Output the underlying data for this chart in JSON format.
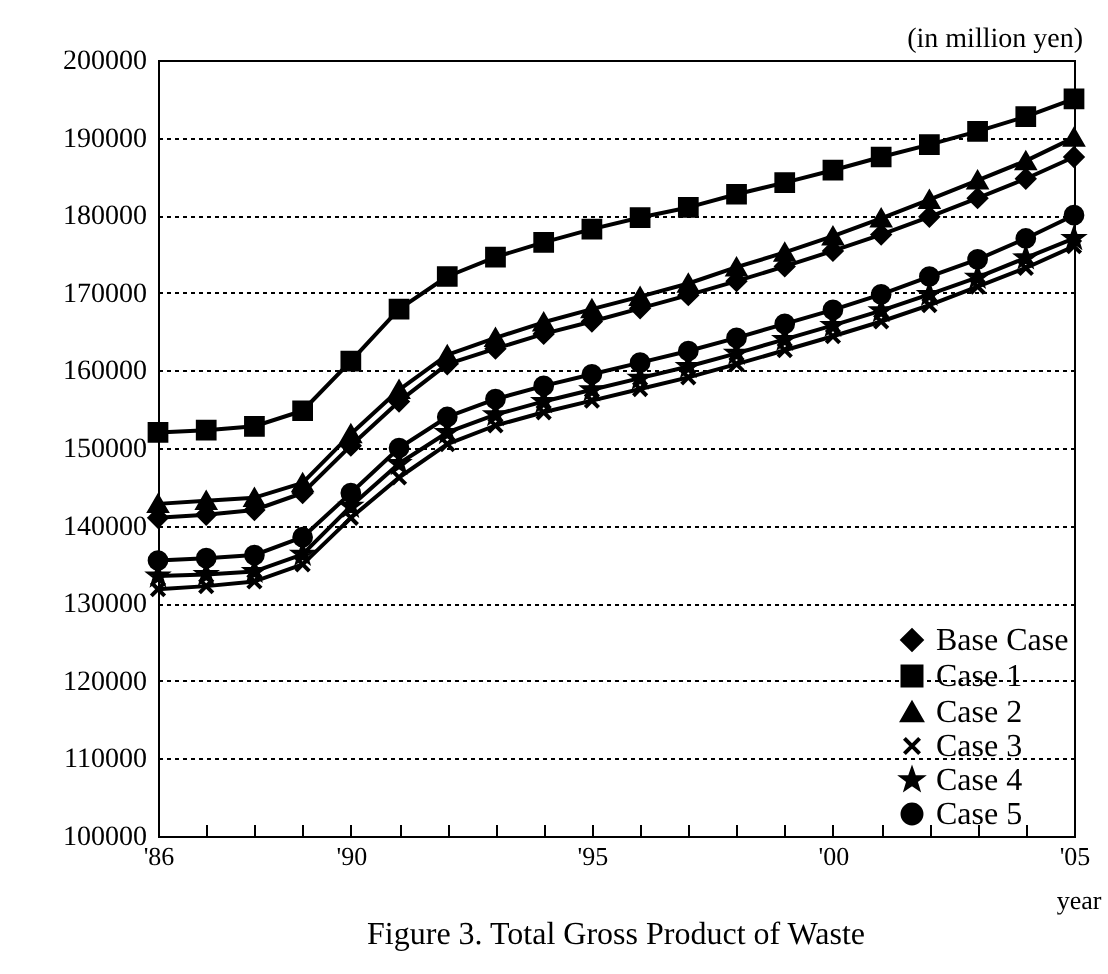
{
  "chart_data": {
    "type": "line",
    "title": "Figure 3. Total Gross Product of Waste",
    "xlabel": "year",
    "ylabel": "(in million yen)",
    "x": [
      1986,
      1987,
      1988,
      1989,
      1990,
      1991,
      1992,
      1993,
      1994,
      1995,
      1996,
      1997,
      1998,
      1999,
      2000,
      2001,
      2002,
      2003,
      2004,
      2005
    ],
    "xlim": [
      1986,
      2005
    ],
    "xticks": [
      {
        "value": 1986,
        "label": "'86"
      },
      {
        "value": 1987,
        "label": null
      },
      {
        "value": 1988,
        "label": null
      },
      {
        "value": 1989,
        "label": null
      },
      {
        "value": 1990,
        "label": "'90"
      },
      {
        "value": 1991,
        "label": null
      },
      {
        "value": 1992,
        "label": null
      },
      {
        "value": 1993,
        "label": null
      },
      {
        "value": 1994,
        "label": null
      },
      {
        "value": 1995,
        "label": "'95"
      },
      {
        "value": 1996,
        "label": null
      },
      {
        "value": 1997,
        "label": null
      },
      {
        "value": 1998,
        "label": null
      },
      {
        "value": 1999,
        "label": null
      },
      {
        "value": 2000,
        "label": "'00"
      },
      {
        "value": 2001,
        "label": null
      },
      {
        "value": 2002,
        "label": null
      },
      {
        "value": 2003,
        "label": null
      },
      {
        "value": 2004,
        "label": null
      },
      {
        "value": 2005,
        "label": "'05"
      }
    ],
    "ylim": [
      100000,
      200000
    ],
    "yticks": [
      100000,
      110000,
      120000,
      130000,
      140000,
      150000,
      160000,
      170000,
      180000,
      190000,
      200000
    ],
    "grid": "y",
    "legend": "bottom right",
    "series": [
      {
        "name": "Base Case",
        "color": "#000000",
        "marker": "diamond",
        "values": [
          141000,
          141400,
          142000,
          144200,
          150300,
          156000,
          160800,
          162800,
          164700,
          166300,
          168000,
          169700,
          171500,
          173400,
          175400,
          177500,
          179800,
          182200,
          184700,
          187500
        ]
      },
      {
        "name": "Case 1",
        "color": "#000000",
        "marker": "square",
        "values": [
          152000,
          152300,
          152800,
          154800,
          161200,
          167900,
          172100,
          174600,
          176500,
          178200,
          179700,
          181000,
          182700,
          184200,
          185800,
          187500,
          189100,
          190800,
          192700,
          195000
        ]
      },
      {
        "name": "Case 2",
        "color": "#000000",
        "marker": "triangle",
        "values": [
          142800,
          143200,
          143600,
          145500,
          151800,
          157500,
          162000,
          164200,
          166200,
          167900,
          169500,
          171200,
          173300,
          175200,
          177300,
          179600,
          182000,
          184500,
          187000,
          190000
        ]
      },
      {
        "name": "Case 3",
        "color": "#000000",
        "marker": "cross",
        "values": [
          131800,
          132200,
          132800,
          135000,
          141000,
          146200,
          150500,
          152900,
          154600,
          156100,
          157600,
          159100,
          160800,
          162600,
          164400,
          166300,
          168400,
          170800,
          173200,
          176000
        ]
      },
      {
        "name": "Case 4",
        "color": "#000000",
        "marker": "star",
        "values": [
          133500,
          133700,
          134100,
          136300,
          142500,
          148000,
          152000,
          154300,
          156000,
          157500,
          159000,
          160500,
          162200,
          164000,
          165800,
          167700,
          169800,
          172000,
          174500,
          177000
        ]
      },
      {
        "name": "Case 5",
        "color": "#000000",
        "marker": "circle",
        "values": [
          135500,
          135800,
          136200,
          138500,
          144200,
          150000,
          154000,
          156300,
          158000,
          159500,
          161000,
          162500,
          164200,
          166000,
          167800,
          169800,
          172100,
          174300,
          177000,
          180000
        ]
      }
    ]
  }
}
